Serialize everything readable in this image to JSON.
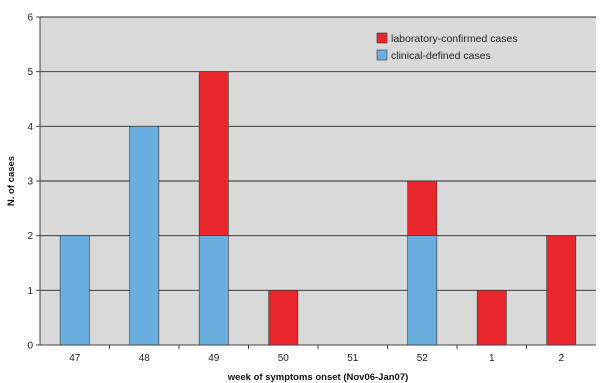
{
  "chart_data": {
    "type": "bar",
    "stacked": true,
    "categories": [
      "47",
      "48",
      "49",
      "50",
      "51",
      "52",
      "1",
      "2"
    ],
    "series": [
      {
        "name": "clinical-defined cases",
        "color": "#6aaee0",
        "values": [
          2,
          4,
          2,
          0,
          0,
          2,
          0,
          0
        ]
      },
      {
        "name": "laboratory-confirmed cases",
        "color": "#e8262b",
        "values": [
          0,
          0,
          3,
          1,
          0,
          1,
          1,
          2
        ]
      }
    ],
    "legend_order": [
      1,
      0
    ],
    "title": "",
    "xlabel": "week of symptoms onset (Nov06-Jan07)",
    "ylabel": "N. of cases",
    "ylim": [
      0,
      6
    ],
    "yticks": [
      0,
      1,
      2,
      3,
      4,
      5,
      6
    ],
    "grid": true,
    "plot_background": "#d9d9d9",
    "legend_position": "top-right"
  }
}
